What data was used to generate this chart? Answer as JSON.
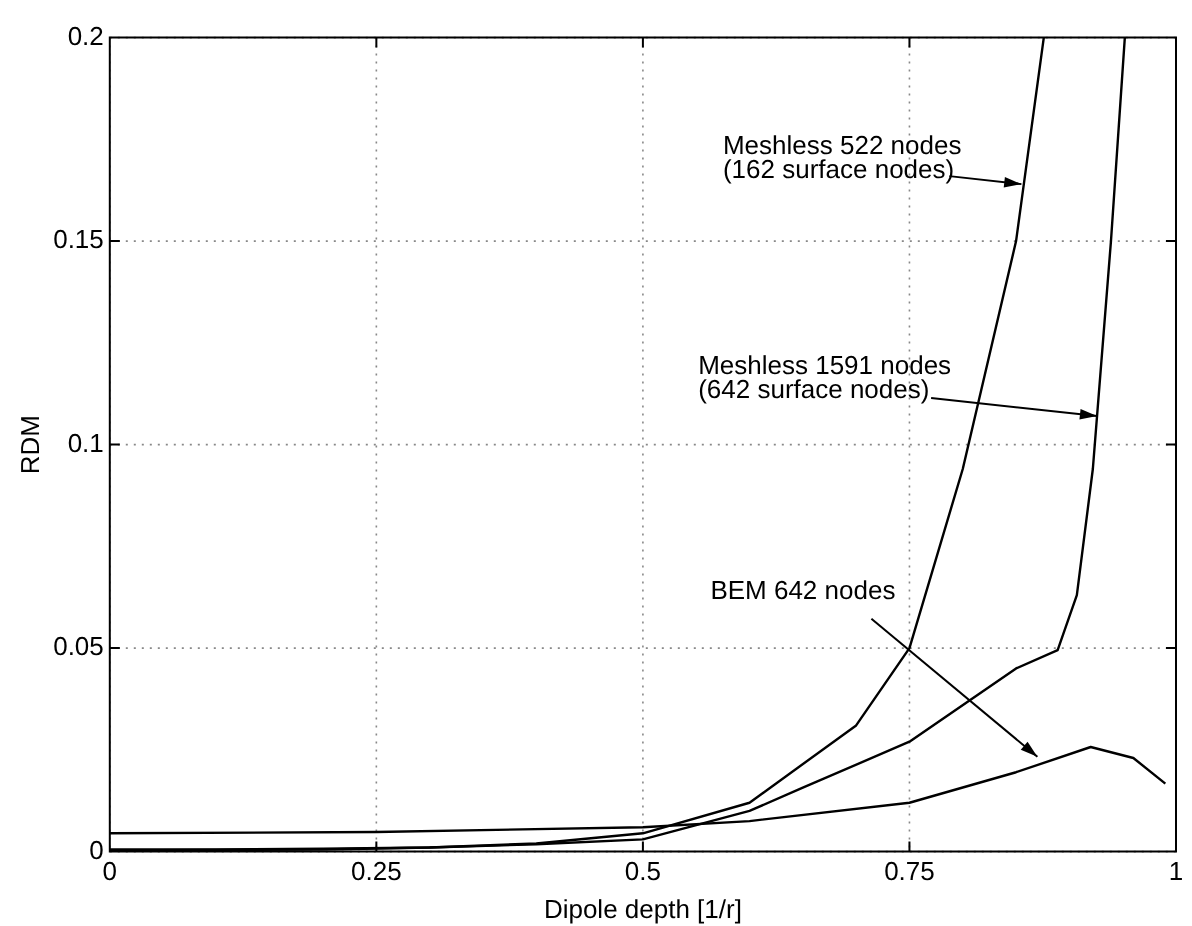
{
  "chart_data": {
    "type": "line",
    "xlabel": "Dipole depth [1/r]",
    "ylabel": "RDM",
    "xlim": [
      0,
      1
    ],
    "xticks": [
      0,
      0.25,
      0.5,
      0.75,
      1
    ],
    "ylim": [
      0,
      0.2
    ],
    "yticks": [
      0,
      0.05,
      0.1,
      0.15,
      0.2
    ],
    "grid": true,
    "marker": "none",
    "line_style": "solid",
    "series": [
      {
        "color": "#000000",
        "x": [
          0,
          0.1,
          0.2,
          0.3,
          0.4,
          0.5,
          0.6,
          0.7,
          0.75,
          0.8,
          0.85,
          0.876
        ],
        "values": [
          0.0005,
          0.0005,
          0.0007,
          0.001,
          0.002,
          0.0045,
          0.012,
          0.031,
          0.05,
          0.094,
          0.15,
          0.2
        ]
      },
      {
        "color": "#000000",
        "x": [
          0,
          0.2,
          0.3,
          0.4,
          0.5,
          0.6,
          0.65,
          0.75,
          0.85,
          0.889,
          0.907,
          0.922,
          0.939,
          0.952
        ],
        "values": [
          0.0003,
          0.0005,
          0.001,
          0.0018,
          0.003,
          0.01,
          0.0157,
          0.027,
          0.045,
          0.0495,
          0.063,
          0.094,
          0.15,
          0.2
        ]
      },
      {
        "color": "#000000",
        "x": [
          0,
          0.25,
          0.5,
          0.6,
          0.75,
          0.85,
          0.92,
          0.96,
          0.99
        ],
        "values": [
          0.0045,
          0.0048,
          0.006,
          0.0075,
          0.012,
          0.0195,
          0.0257,
          0.023,
          0.0167
        ]
      }
    ],
    "annotations": [
      {
        "text": "Meshless 522 nodes\n(162 surface nodes)",
        "x": 0.855,
        "y": 0.164
      },
      {
        "text": "Meshless 1591 nodes\n(642 surface nodes)",
        "x": 0.926,
        "y": 0.107
      },
      {
        "text": "BEM 642 nodes",
        "x": 0.87,
        "y": 0.0233
      }
    ]
  }
}
